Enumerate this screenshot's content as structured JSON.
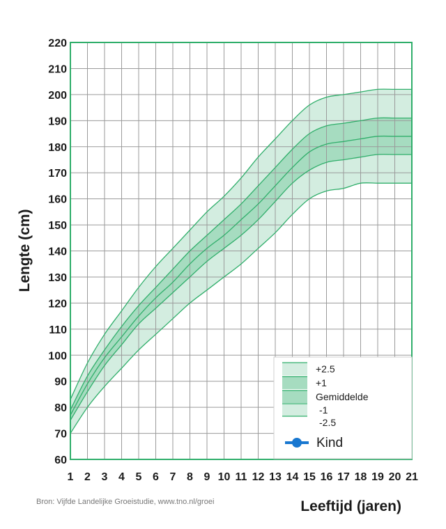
{
  "colors": {
    "line": "#2fae6a",
    "band_outer": "#d3ede0",
    "band_inner": "#a6dcc0",
    "grid": "#9a9a9a",
    "frame": "#2fae6a",
    "kind": "#1877d0"
  },
  "source_text": "Bron: Vijfde Landelijke Groeistudie, www.tno.nl/groei",
  "chart_data": {
    "type": "area",
    "xlabel": "Leeftijd (jaren)",
    "ylabel": "Lengte (cm)",
    "xlim": [
      1,
      21
    ],
    "ylim": [
      60,
      220
    ],
    "x_ticks": [
      "1",
      "2",
      "3",
      "4",
      "5",
      "6",
      "7",
      "8",
      "9",
      "10",
      "11",
      "12",
      "13",
      "14",
      "15",
      "16",
      "17",
      "18",
      "19",
      "20",
      "21"
    ],
    "y_ticks": [
      "60",
      "70",
      "80",
      "90",
      "100",
      "110",
      "120",
      "130",
      "140",
      "150",
      "160",
      "170",
      "180",
      "190",
      "200",
      "210",
      "220"
    ],
    "grid": true,
    "legend_position": "bottom-right",
    "x": [
      1,
      2,
      3,
      4,
      5,
      6,
      7,
      8,
      9,
      10,
      11,
      12,
      13,
      14,
      15,
      16,
      17,
      18,
      19,
      20,
      21
    ],
    "series": [
      {
        "name": "+2.5",
        "values": [
          83,
          97,
          108,
          117,
          126,
          134,
          141,
          148,
          155,
          161,
          168,
          176,
          183,
          190,
          196,
          199,
          200,
          201,
          202,
          202,
          202
        ]
      },
      {
        "name": "+1",
        "values": [
          79,
          92,
          102,
          111,
          119,
          126,
          133,
          140,
          146,
          152,
          158,
          165,
          172,
          179,
          185,
          188,
          189,
          190,
          191,
          191,
          191
        ]
      },
      {
        "name": "Gemiddelde",
        "values": [
          77,
          89,
          99,
          107,
          115,
          122,
          128,
          135,
          141,
          146,
          152,
          158,
          165,
          172,
          178,
          181,
          182,
          183,
          184,
          184,
          184
        ]
      },
      {
        "name": "-1",
        "values": [
          75,
          86,
          96,
          104,
          112,
          118,
          124,
          130,
          136,
          141,
          146,
          152,
          159,
          166,
          171,
          174,
          175,
          176,
          177,
          177,
          177
        ]
      },
      {
        "name": "-2.5",
        "values": [
          70,
          80,
          88,
          95,
          102,
          108,
          114,
          120,
          125,
          130,
          135,
          141,
          147,
          154,
          160,
          163,
          164,
          166,
          166,
          166,
          166
        ]
      }
    ],
    "legend": [
      {
        "label": "+2.5",
        "swatch": "band_outer"
      },
      {
        "label": "+1",
        "swatch": "band_inner"
      },
      {
        "label": "Gemiddelde",
        "swatch": "band_inner"
      },
      {
        "label": "-1",
        "swatch": "band_outer"
      },
      {
        "label": "-2.5",
        "swatch": "none"
      }
    ],
    "legend_marker": {
      "label": "Kind",
      "marker": "circle-line"
    }
  }
}
